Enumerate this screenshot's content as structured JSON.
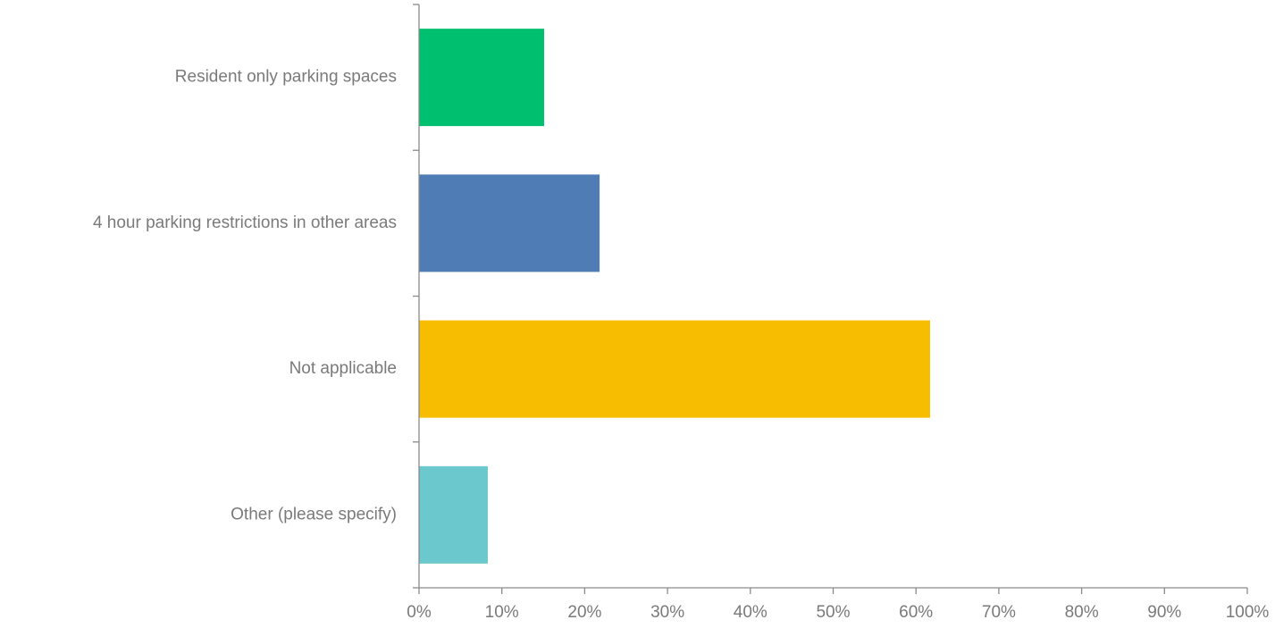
{
  "chart_data": {
    "type": "bar",
    "orientation": "horizontal",
    "categories": [
      "Resident only parking spaces",
      "4 hour parking restrictions in other areas",
      "Not applicable",
      "Other (please specify)"
    ],
    "values": [
      15.1,
      21.8,
      61.7,
      8.3
    ],
    "colors": [
      "#00bf6f",
      "#507cb6",
      "#f7bd00",
      "#6bc8cd"
    ],
    "xlim": [
      0,
      100
    ],
    "xticks": [
      "0%",
      "10%",
      "20%",
      "30%",
      "40%",
      "50%",
      "60%",
      "70%",
      "80%",
      "90%",
      "100%"
    ],
    "grid": false,
    "legend": "none"
  }
}
